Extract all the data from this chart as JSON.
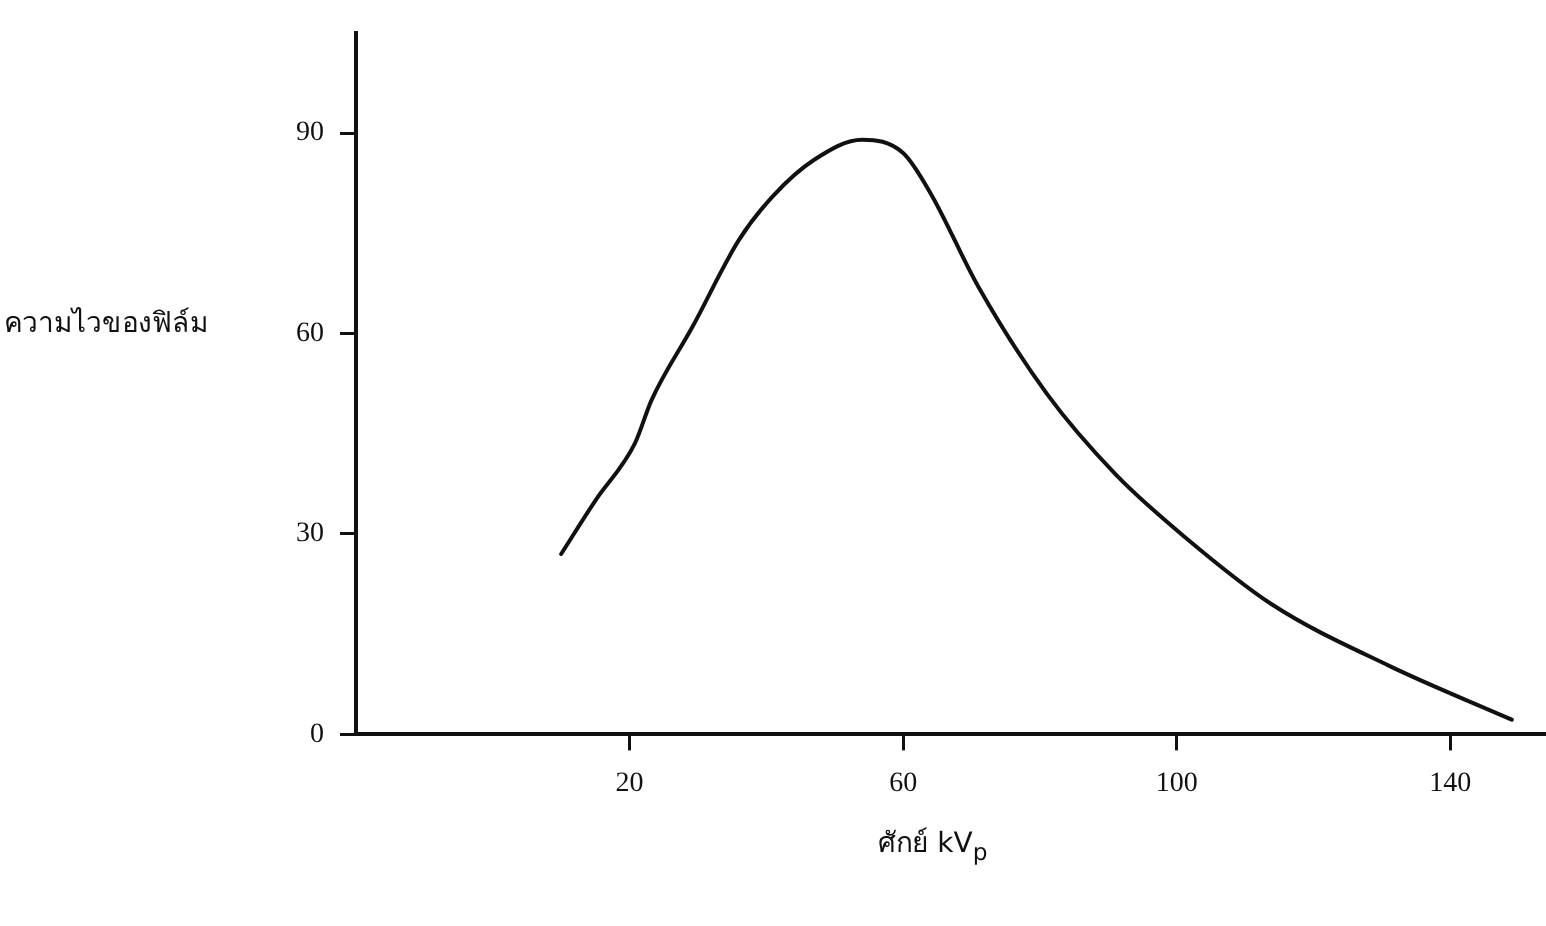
{
  "chart_data": {
    "type": "line",
    "xlabel": "ศักย์ kV$_{p}$",
    "ylabel": "ความไวของฟิล์ม",
    "x": [
      10,
      15,
      20.8,
      23.2,
      29.2,
      36,
      41,
      47,
      54,
      60,
      64,
      71,
      81,
      91,
      101,
      114,
      131,
      149
    ],
    "series": [
      {
        "color": "#111111",
        "values": [
          27,
          35,
          43.6,
          50,
          61,
          74,
          80.6,
          86,
          89,
          87,
          81,
          67,
          51,
          39,
          29.7,
          19.4,
          10.3,
          2.2
        ]
      }
    ],
    "xlim": [
      -20,
      154
    ],
    "xticks": [
      20,
      60,
      100,
      140
    ],
    "ylim": [
      0,
      105
    ],
    "yticks": [
      0,
      30,
      60,
      90
    ],
    "grid": false,
    "legend": false,
    "marker": "none",
    "line_style": "solid"
  }
}
